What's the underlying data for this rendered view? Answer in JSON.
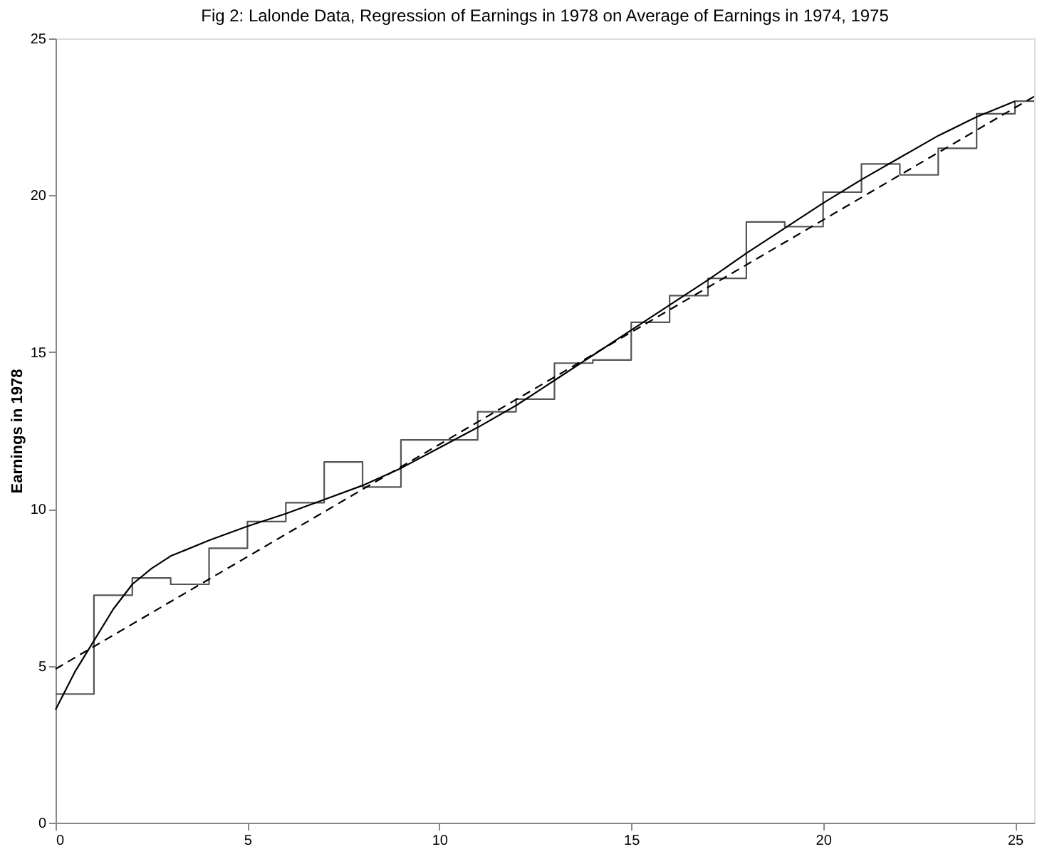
{
  "chart_data": {
    "type": "line",
    "title": "Fig 2: Lalonde Data, Regression of Earnings in 1978 on Average of Earnings in 1974, 1975",
    "ylabel": "Earnings in 1978",
    "xlim": [
      0,
      25.5
    ],
    "ylim": [
      0,
      25
    ],
    "xticks": [
      0,
      5,
      10,
      15,
      20,
      25
    ],
    "yticks": [
      0,
      5,
      10,
      15,
      20,
      25
    ],
    "grid": false,
    "series": [
      {
        "type": "step",
        "color": "#555555",
        "line_style": "solid",
        "x": [
          0,
          1,
          2,
          3,
          4,
          5,
          6,
          7,
          8,
          9,
          10,
          11,
          12,
          13,
          14,
          15,
          16,
          17,
          18,
          19,
          20,
          21,
          22,
          23,
          24,
          25,
          25.5
        ],
        "values": [
          4.1,
          7.25,
          7.8,
          7.6,
          8.75,
          9.6,
          10.2,
          11.5,
          10.7,
          12.2,
          12.2,
          13.1,
          13.5,
          14.65,
          14.75,
          15.95,
          16.8,
          17.35,
          19.15,
          19.0,
          20.1,
          21.0,
          20.65,
          21.5,
          22.6,
          23.0,
          23.0
        ]
      },
      {
        "color": "#000000",
        "line_style": "solid",
        "x": [
          0,
          0.5,
          1,
          1.5,
          2,
          2.5,
          3,
          4,
          5,
          6,
          7,
          8,
          9,
          10,
          11,
          12,
          13,
          14,
          15,
          16,
          17,
          18,
          19,
          20,
          21,
          22,
          23,
          24,
          25
        ],
        "values": [
          3.6,
          4.8,
          5.8,
          6.8,
          7.6,
          8.1,
          8.5,
          9.0,
          9.45,
          9.85,
          10.3,
          10.75,
          11.3,
          11.95,
          12.6,
          13.3,
          14.1,
          14.9,
          15.7,
          16.5,
          17.3,
          18.15,
          18.95,
          19.75,
          20.5,
          21.2,
          21.9,
          22.5,
          23.0
        ]
      },
      {
        "type": "line",
        "color": "#000000",
        "line_style": "dashed",
        "x": [
          0,
          25.5
        ],
        "values": [
          4.9,
          23.15
        ]
      }
    ]
  }
}
